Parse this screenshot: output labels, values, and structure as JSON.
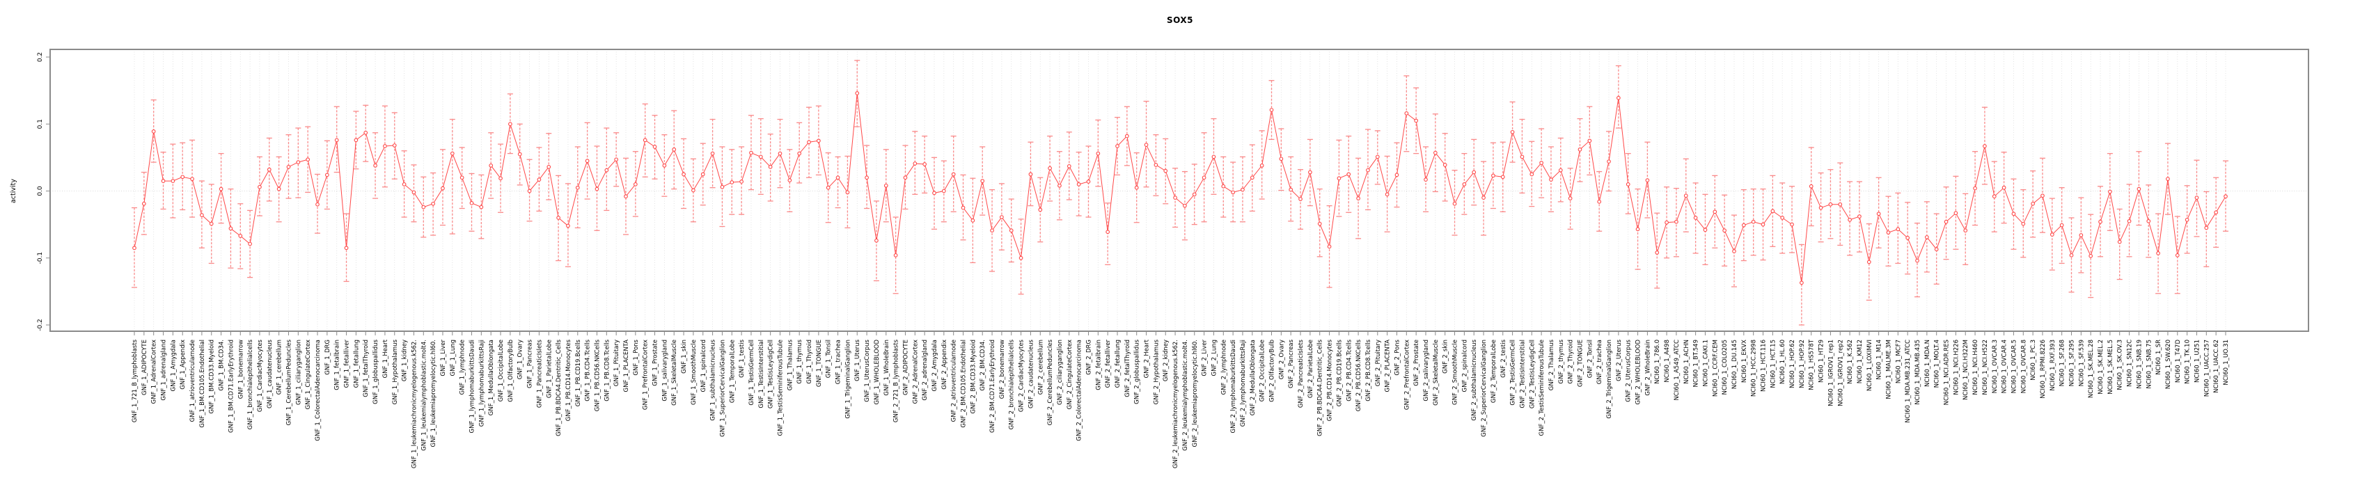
{
  "chart_data": {
    "type": "line",
    "subtype": "points-with-error-bars",
    "title": "SOX5",
    "xlabel": "",
    "ylabel": "activity",
    "ylim": [
      -0.2,
      0.2
    ],
    "yticks": [
      0.2,
      0.1,
      0.0,
      -0.1,
      -0.2
    ],
    "ytick_labels": [
      "0.2",
      "0.1",
      "0.0",
      "-0.1",
      "-0.2"
    ],
    "grid": "vertical dotted gridline per category; horizontal dotted line at 0 only",
    "legend": "none",
    "colors": {
      "error_bar": "#FA8A8A",
      "series_line": "#FF4747",
      "marker_stroke": "#FF4747",
      "marker_fill": "#FFFFFF",
      "gridline": "#DBDBDB",
      "zero_line": "#D8D8D8",
      "plot_border": "#8A8A8A",
      "axis_tick": "#8A8A8A",
      "text": "#000000"
    },
    "categories": [
      "GNF_1_721_B_lymphoblasts",
      "GNF_1_ADIPOCYTE",
      "GNF_1_AdrenalCortex",
      "GNF_1_adrenalgland",
      "GNF_1_Amygdala",
      "GNF_1_Appendix",
      "GNF_1_atrioventricularnode",
      "GNF_1_BM.CD105.Endothelial",
      "GNF_1_BM.CD33.Myeloid",
      "GNF_1_BM.CD34.",
      "GNF_1_BM.CD71.EarlyErythroid",
      "GNF_1_bonemarrow",
      "GNF_1_bronchialepithelialcells",
      "GNF_1_CardiacMyocytes",
      "GNF_1_caudatenucleus",
      "GNF_1_cerebellum",
      "GNF_1_CerebellumPeduncles",
      "GNF_1_ciliaryganglion",
      "GNF_1_CingulateCortex",
      "GNF_1_ColorectalAdenocarcinoma",
      "GNF_1_DRG",
      "GNF_1_fetalbrain",
      "GNF_1_fetalliver",
      "GNF_1_fetallung",
      "GNF_1_fetalThyroid",
      "GNF_1_globuspallidus",
      "GNF_1_Heart",
      "GNF_1_Hypothalamus",
      "GNF_1_kidney",
      "GNF_1_leukemiachronicmyelogenous.k562.",
      "GNF_1_leukemialymphoblastic.molt4.",
      "GNF_1_leukemiapromyelocytic.hl60.",
      "GNF_1_Liver",
      "GNF_1_Lung",
      "GNF_1_lymphnode",
      "GNF_1_lymphomaburkittsDaudi",
      "GNF_1_lymphomaburkittsRaji",
      "GNF_1_MedullaOblongata",
      "GNF_1_OccipitalLobe",
      "GNF_1_OlfactoryBulb",
      "GNF_1_Ovary",
      "GNF_1_Pancreas",
      "GNF_1_PancreaticIslets",
      "GNF_1_ParietalLobe",
      "GNF_1_PB.BDCA4.Dentritic_Cells",
      "GNF_1_PB.CD14.Monocytes",
      "GNF_1_PB.CD19.Bcells",
      "GNF_1_PB.CD4.Tcells",
      "GNF_1_PB.CD56.NKCells",
      "GNF_1_PB.CD8.Tcells",
      "GNF_1_Pituitary",
      "GNF_1_PLACENTA",
      "GNF_1_Pons",
      "GNF_1_PrefrontalCortex",
      "GNF_1_Prostate",
      "GNF_1_salivarygland",
      "GNF_1_SkeletalMuscle",
      "GNF_1_skin",
      "GNF_1_SmoothMuscle",
      "GNF_1_spinalcord",
      "GNF_1_subthalamicnucleus",
      "GNF_1_SuperiorCervicalGanglion",
      "GNF_1_TemporalLobe",
      "GNF_1_testis",
      "GNF_1_TestisGermCell",
      "GNF_1_TestisInterstitial",
      "GNF_1_TestisLeydigCell",
      "GNF_1_TestisSeminiferousTubule",
      "GNF_1_Thalamus",
      "GNF_1_thymus",
      "GNF_1_Thyroid",
      "GNF_1_TONGUE",
      "GNF_1_Tonsil",
      "GNF_1_trachea",
      "GNF_1_TrigeminalGanglion",
      "GNF_1_Uterus",
      "GNF_1_UterusCorpus",
      "GNF_1_WHOLEBLOOD",
      "GNF_1_WholeBrain",
      "GNF_2_721_B_lymphoblasts",
      "GNF_2_ADIPOCYTE",
      "GNF_2_AdrenalCortex",
      "GNF_2_adrenalgland",
      "GNF_2_Amygdala",
      "GNF_2_Appendix",
      "GNF_2_atrioventricularnode",
      "GNF_2_BM.CD105.Endothelial",
      "GNF_2_BM.CD33.Myeloid",
      "GNF_2_BM.CD34.",
      "GNF_2_BM.CD71.EarlyErythroid",
      "GNF_2_bonemarrow",
      "GNF_2_bronchialepithelialcells",
      "GNF_2_CardiacMyocytes",
      "GNF_2_caudatenucleus",
      "GNF_2_cerebellum",
      "GNF_2_CerebellumPeduncles",
      "GNF_2_ciliaryganglion",
      "GNF_2_CingulateCortex",
      "GNF_2_ColorectalAdenocarcinoma",
      "GNF_2_DRG",
      "GNF_2_fetalbrain",
      "GNF_2_fetalliver",
      "GNF_2_fetallung",
      "GNF_2_fetalThyroid",
      "GNF_2_globuspallidus",
      "GNF_2_Heart",
      "GNF_2_Hypothalamus",
      "GNF_2_kidney",
      "GNF_2_leukemiachronicmyelogenous.k562.",
      "GNF_2_leukemialymphoblastic.molt4.",
      "GNF_2_leukemiapromyelocytic.hl60.",
      "GNF_2_Liver",
      "GNF_2_Lung",
      "GNF_2_lymphnode",
      "GNF_2_lymphomaburkittsDaudi",
      "GNF_2_lymphomaburkittsRaji",
      "GNF_2_MedullaOblongata",
      "GNF_2_OccipitalLobe",
      "GNF_2_OlfactoryBulb",
      "GNF_2_Ovary",
      "GNF_2_Pancreas",
      "GNF_2_PancreaticIslets",
      "GNF_2_ParietalLobe",
      "GNF_2_PB.BDCA4.Dentritic_Cells",
      "GNF_2_PB.CD14.Monocytes",
      "GNF_2_PB.CD19.Bcells",
      "GNF_2_PB.CD4.Tcells",
      "GNF_2_PB.CD56.NKCells",
      "GNF_2_PB.CD8.Tcells",
      "GNF_2_Pituitary",
      "GNF_2_PLACENTA",
      "GNF_2_Pons",
      "GNF_2_PrefrontalCortex",
      "GNF_2_Prostate",
      "GNF_2_salivarygland",
      "GNF_2_SkeletalMuscle",
      "GNF_2_skin",
      "GNF_2_SmoothMuscle",
      "GNF_2_spinalcord",
      "GNF_2_subthalamicnucleus",
      "GNF_2_SuperiorCervicalGanglion",
      "GNF_2_TemporalLobe",
      "GNF_2_testis",
      "GNF_2_TestisGermCell",
      "GNF_2_TestisInterstitial",
      "GNF_2_TestisLeydigCell",
      "GNF_2_TestisSeminiferousTubule",
      "GNF_2_Thalamus",
      "GNF_2_thymus",
      "GNF_2_Thyroid",
      "GNF_2_TONGUE",
      "GNF_2_Tonsil",
      "GNF_2_trachea",
      "GNF_2_TrigeminalGanglion",
      "GNF_2_Uterus",
      "GNF_2_UterusCorpus",
      "GNF_2_WHOLEBLOOD",
      "GNF_2_WholeBrain",
      "NCI60_1_786.0",
      "NCI60_1_A498",
      "NCI60_1_A549_ATCC",
      "NCI60_1_ACHN",
      "NCI60_1_BT.549",
      "NCI60_1_CAKI.1",
      "NCI60_1_CCRF.CEM",
      "NCI60_1_COLO205",
      "NCI60_1_DU.145",
      "NCI60_1_EKVX",
      "NCI60_1_HCC.2998",
      "NCI60_1_HCT.116",
      "NCI60_1_HCT.15",
      "NCI60_1_HL.60",
      "NCI60_1_HOP.62",
      "NCI60_1_HOP.92",
      "NCI60_1_HS578T",
      "NCI60_1_HT29",
      "NCI60_1_IGROV1_rep1",
      "NCI60_1_IGROV1_rep2",
      "NCI60_1_K.562",
      "NCI60_1_KM12",
      "NCI60_1_LOXIMVI",
      "NCI60_1_M14",
      "NCI60_1_MALME.3M",
      "NCI60_1_MCF7",
      "NCI60_1_MDA.MB.231_ATCC",
      "NCI60_1_MDA.MB.435",
      "NCI60_1_MDA.N",
      "NCI60_1_MOLT.4",
      "NCI60_1_NCI.ADR.RES",
      "NCI60_1_NCI.H226",
      "NCI60_1_NCI.H322M",
      "NCI60_1_NCI.H460",
      "NCI60_1_NCI.H522",
      "NCI60_1_OVCAR.3",
      "NCI60_1_OVCAR.4",
      "NCI60_1_OVCAR.5",
      "NCI60_1_OVCAR.8",
      "NCI60_1_PC.3",
      "NCI60_1_RPMI.8226",
      "NCI60_1_RXF.393",
      "NCI60_1_SF.268",
      "NCI60_1_SF.295",
      "NCI60_1_SF.539",
      "NCI60_1_SK.MEL.28",
      "NCI60_1_SK.MEL.2",
      "NCI60_1_SK.MEL.5",
      "NCI60_1_SK.OV.3",
      "NCI60_1_SN12C",
      "NCI60_1_SNB.19",
      "NCI60_1_SNB.75",
      "NCI60_1_SR",
      "NCI60_1_SW.620",
      "NCI60_1_T47D",
      "NCI60_1_TK.10",
      "NCI60_1_U251",
      "NCI60_1_UACC.257",
      "NCI60_1_UACC.62",
      "NCI60_1_UO.31"
    ],
    "series": [
      {
        "name": "activity",
        "values": [
          -0.085,
          -0.019,
          0.089,
          0.015,
          0.015,
          0.021,
          0.018,
          -0.036,
          -0.049,
          0.003,
          -0.056,
          -0.067,
          -0.079,
          0.006,
          0.032,
          0.003,
          0.036,
          0.043,
          0.047,
          -0.02,
          0.024,
          0.076,
          -0.085,
          0.076,
          0.087,
          0.038,
          0.067,
          0.068,
          0.01,
          -0.002,
          -0.024,
          -0.019,
          0.004,
          0.056,
          0.02,
          -0.018,
          -0.024,
          0.038,
          0.019,
          0.1,
          0.055,
          0.0,
          0.017,
          0.036,
          -0.04,
          -0.052,
          0.005,
          0.045,
          0.003,
          0.031,
          0.047,
          -0.008,
          0.01,
          0.076,
          0.066,
          0.038,
          0.062,
          0.025,
          0.001,
          0.025,
          0.056,
          0.006,
          0.013,
          0.014,
          0.057,
          0.051,
          0.036,
          0.056,
          0.016,
          0.056,
          0.073,
          0.075,
          0.005,
          0.02,
          -0.002,
          0.146,
          0.02,
          -0.074,
          0.008,
          -0.096,
          0.02,
          0.041,
          0.04,
          -0.003,
          0.0,
          0.025,
          -0.025,
          -0.044,
          0.015,
          -0.059,
          -0.039,
          -0.059,
          -0.1,
          0.025,
          -0.028,
          0.034,
          0.008,
          0.037,
          0.01,
          0.014,
          0.056,
          -0.061,
          0.067,
          0.082,
          0.005,
          0.069,
          0.039,
          0.03,
          -0.01,
          -0.022,
          -0.005,
          0.02,
          0.051,
          0.007,
          -0.002,
          0.002,
          0.02,
          0.038,
          0.121,
          0.048,
          0.002,
          -0.012,
          0.028,
          -0.049,
          -0.083,
          0.019,
          0.025,
          -0.011,
          0.031,
          0.051,
          -0.005,
          0.024,
          0.116,
          0.105,
          0.017,
          0.057,
          0.039,
          -0.019,
          0.01,
          0.028,
          -0.01,
          0.023,
          0.021,
          0.088,
          0.051,
          0.025,
          0.042,
          0.017,
          0.031,
          -0.011,
          0.062,
          0.075,
          -0.016,
          0.044,
          0.139,
          0.01,
          -0.057,
          0.016,
          -0.092,
          -0.047,
          -0.046,
          -0.007,
          -0.04,
          -0.058,
          -0.031,
          -0.059,
          -0.09,
          -0.051,
          -0.046,
          -0.05,
          -0.03,
          -0.04,
          -0.05,
          -0.137,
          0.007,
          -0.025,
          -0.02,
          -0.02,
          -0.043,
          -0.038,
          -0.106,
          -0.034,
          -0.062,
          -0.057,
          -0.07,
          -0.104,
          -0.069,
          -0.087,
          -0.046,
          -0.033,
          -0.059,
          0.004,
          0.067,
          -0.008,
          0.005,
          -0.034,
          -0.049,
          -0.019,
          -0.007,
          -0.065,
          -0.051,
          -0.096,
          -0.066,
          -0.097,
          -0.046,
          -0.001,
          -0.076,
          -0.045,
          0.003,
          -0.045,
          -0.093,
          0.018,
          -0.096,
          -0.043,
          -0.01,
          -0.055,
          -0.032,
          -0.008
        ],
        "lower": [
          -0.144,
          -0.065,
          0.043,
          -0.027,
          -0.04,
          -0.028,
          -0.039,
          -0.085,
          -0.108,
          -0.048,
          -0.115,
          -0.116,
          -0.129,
          -0.037,
          -0.015,
          -0.046,
          -0.011,
          -0.01,
          -0.002,
          -0.063,
          -0.027,
          0.028,
          -0.135,
          0.033,
          0.044,
          -0.011,
          0.006,
          0.018,
          -0.039,
          -0.046,
          -0.069,
          -0.066,
          -0.051,
          -0.064,
          -0.026,
          -0.06,
          -0.071,
          -0.011,
          -0.032,
          0.056,
          0.009,
          -0.045,
          -0.03,
          -0.013,
          -0.104,
          -0.113,
          -0.055,
          -0.012,
          -0.059,
          -0.029,
          0.007,
          -0.065,
          -0.038,
          0.021,
          0.018,
          -0.008,
          0.003,
          -0.026,
          -0.046,
          -0.021,
          0.005,
          -0.053,
          -0.035,
          -0.035,
          0.002,
          -0.005,
          -0.015,
          0.005,
          -0.031,
          0.012,
          0.02,
          0.024,
          -0.047,
          -0.025,
          -0.055,
          0.096,
          -0.026,
          -0.134,
          -0.046,
          -0.153,
          -0.027,
          -0.005,
          -0.003,
          -0.057,
          -0.046,
          -0.031,
          -0.073,
          -0.107,
          -0.036,
          -0.12,
          -0.088,
          -0.106,
          -0.154,
          -0.022,
          -0.076,
          -0.015,
          -0.043,
          -0.013,
          -0.037,
          -0.039,
          0.007,
          -0.11,
          0.024,
          0.038,
          -0.047,
          0.006,
          -0.007,
          -0.019,
          -0.054,
          -0.073,
          -0.05,
          -0.046,
          -0.005,
          -0.039,
          -0.046,
          -0.046,
          -0.03,
          -0.012,
          0.077,
          0.001,
          -0.045,
          -0.057,
          -0.022,
          -0.098,
          -0.144,
          -0.038,
          -0.032,
          -0.071,
          -0.028,
          0.01,
          -0.061,
          -0.024,
          0.059,
          0.056,
          -0.031,
          -0.001,
          -0.015,
          -0.066,
          -0.035,
          -0.021,
          -0.066,
          -0.026,
          -0.031,
          0.043,
          -0.003,
          -0.023,
          -0.01,
          -0.031,
          -0.016,
          -0.057,
          0.014,
          0.024,
          -0.06,
          0.0,
          0.094,
          -0.034,
          -0.117,
          -0.04,
          -0.145,
          -0.1,
          -0.098,
          -0.061,
          -0.093,
          -0.11,
          -0.085,
          -0.112,
          -0.143,
          -0.104,
          -0.096,
          -0.103,
          -0.083,
          -0.093,
          -0.092,
          -0.2,
          -0.052,
          -0.076,
          -0.071,
          -0.081,
          -0.096,
          -0.091,
          -0.163,
          -0.085,
          -0.112,
          -0.108,
          -0.124,
          -0.158,
          -0.121,
          -0.139,
          -0.102,
          -0.087,
          -0.11,
          -0.051,
          0.01,
          -0.061,
          -0.048,
          -0.087,
          -0.099,
          -0.069,
          -0.062,
          -0.118,
          -0.108,
          -0.151,
          -0.122,
          -0.159,
          -0.098,
          -0.059,
          -0.132,
          -0.098,
          -0.051,
          -0.099,
          -0.153,
          -0.035,
          -0.153,
          -0.093,
          -0.068,
          -0.113,
          -0.084,
          -0.06
        ],
        "upper": [
          -0.025,
          0.028,
          0.136,
          0.058,
          0.07,
          0.072,
          0.076,
          0.015,
          0.01,
          0.056,
          0.003,
          -0.019,
          -0.029,
          0.051,
          0.079,
          0.051,
          0.084,
          0.094,
          0.096,
          0.025,
          0.075,
          0.126,
          -0.034,
          0.119,
          0.128,
          0.087,
          0.127,
          0.117,
          0.06,
          0.039,
          0.021,
          0.027,
          0.062,
          0.107,
          0.065,
          0.026,
          0.024,
          0.087,
          0.07,
          0.145,
          0.1,
          0.047,
          0.065,
          0.086,
          0.023,
          0.011,
          0.066,
          0.102,
          0.067,
          0.094,
          0.087,
          0.049,
          0.059,
          0.13,
          0.113,
          0.084,
          0.12,
          0.078,
          0.048,
          0.071,
          0.107,
          0.066,
          0.062,
          0.066,
          0.113,
          0.108,
          0.085,
          0.107,
          0.062,
          0.102,
          0.125,
          0.127,
          0.057,
          0.051,
          0.052,
          0.195,
          0.068,
          -0.015,
          0.062,
          -0.039,
          0.068,
          0.089,
          0.082,
          0.05,
          0.045,
          0.082,
          0.024,
          0.019,
          0.066,
          0.002,
          0.011,
          -0.012,
          -0.042,
          0.073,
          0.02,
          0.082,
          0.059,
          0.088,
          0.058,
          0.067,
          0.106,
          -0.018,
          0.11,
          0.126,
          0.057,
          0.134,
          0.084,
          0.078,
          0.034,
          0.029,
          0.04,
          0.087,
          0.108,
          0.051,
          0.043,
          0.051,
          0.069,
          0.09,
          0.165,
          0.093,
          0.051,
          0.032,
          0.077,
          0.003,
          -0.022,
          0.076,
          0.082,
          0.049,
          0.092,
          0.09,
          0.052,
          0.072,
          0.172,
          0.154,
          0.066,
          0.115,
          0.086,
          0.031,
          0.056,
          0.077,
          0.044,
          0.072,
          0.073,
          0.133,
          0.107,
          0.074,
          0.093,
          0.066,
          0.079,
          0.034,
          0.108,
          0.126,
          0.029,
          0.089,
          0.187,
          0.056,
          0.003,
          0.073,
          -0.033,
          0.006,
          0.004,
          0.048,
          0.012,
          -0.005,
          0.023,
          -0.006,
          -0.036,
          0.002,
          0.003,
          0.003,
          0.023,
          0.012,
          0.007,
          -0.08,
          0.065,
          0.027,
          0.032,
          0.042,
          0.014,
          0.014,
          -0.049,
          0.02,
          -0.008,
          -0.003,
          -0.017,
          -0.048,
          -0.016,
          -0.034,
          0.006,
          0.022,
          -0.004,
          0.059,
          0.125,
          0.044,
          0.058,
          0.018,
          0.002,
          0.03,
          0.049,
          -0.011,
          0.005,
          -0.04,
          -0.01,
          -0.035,
          0.007,
          0.056,
          -0.027,
          0.01,
          0.059,
          0.009,
          -0.034,
          0.071,
          -0.038,
          0.008,
          0.046,
          -0.001,
          0.02,
          0.045
        ]
      }
    ]
  }
}
